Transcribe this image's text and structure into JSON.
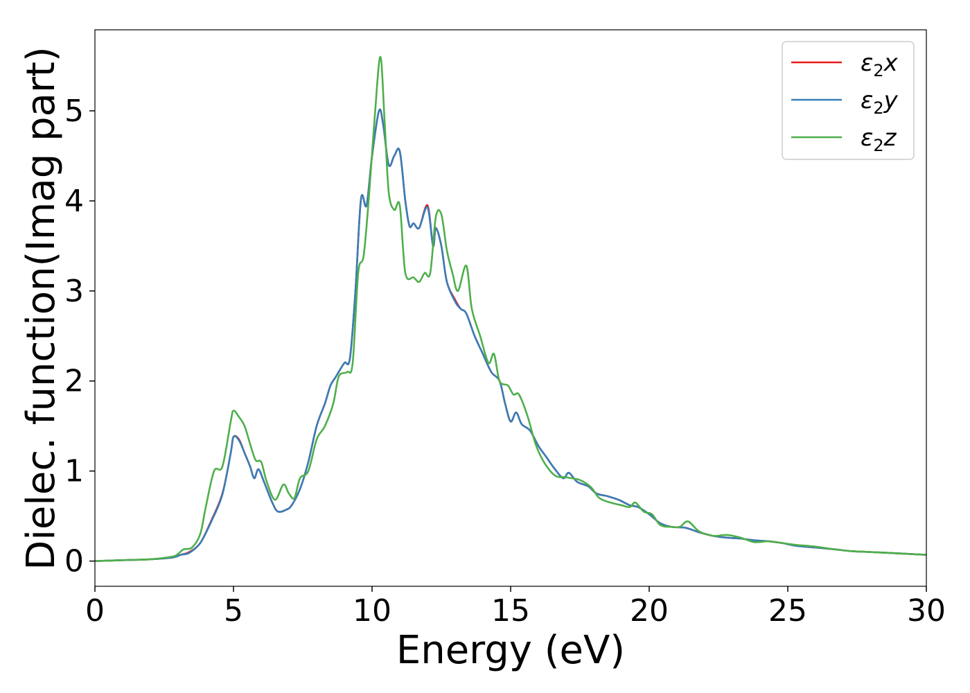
{
  "chart_data": {
    "type": "line",
    "xlabel": "Energy (eV)",
    "ylabel": "Dielec. function(Imag part)",
    "xlim": [
      0,
      30
    ],
    "ylim": [
      -0.28,
      5.9
    ],
    "xticks": [
      0,
      5,
      10,
      15,
      20,
      25,
      30
    ],
    "yticks": [
      0,
      1,
      2,
      3,
      4,
      5
    ],
    "grid": false,
    "legend_position": "top-right",
    "series": [
      {
        "name": "ε2x",
        "color": "#e41a1c",
        "points": [
          [
            0,
            0.0
          ],
          [
            1,
            0.01
          ],
          [
            2,
            0.02
          ],
          [
            2.8,
            0.04
          ],
          [
            3.1,
            0.07
          ],
          [
            3.4,
            0.1
          ],
          [
            3.8,
            0.2
          ],
          [
            4.2,
            0.45
          ],
          [
            4.6,
            0.75
          ],
          [
            4.9,
            1.2
          ],
          [
            5.0,
            1.38
          ],
          [
            5.2,
            1.35
          ],
          [
            5.4,
            1.2
          ],
          [
            5.6,
            1.05
          ],
          [
            5.75,
            0.92
          ],
          [
            5.9,
            1.02
          ],
          [
            6.1,
            0.88
          ],
          [
            6.4,
            0.65
          ],
          [
            6.6,
            0.55
          ],
          [
            6.9,
            0.57
          ],
          [
            7.1,
            0.62
          ],
          [
            7.4,
            0.8
          ],
          [
            7.7,
            1.1
          ],
          [
            8.0,
            1.5
          ],
          [
            8.3,
            1.75
          ],
          [
            8.5,
            1.95
          ],
          [
            8.7,
            2.05
          ],
          [
            9.0,
            2.2
          ],
          [
            9.2,
            2.25
          ],
          [
            9.4,
            3.0
          ],
          [
            9.6,
            4.02
          ],
          [
            9.8,
            3.95
          ],
          [
            10.0,
            4.5
          ],
          [
            10.25,
            5.0
          ],
          [
            10.4,
            4.85
          ],
          [
            10.6,
            4.4
          ],
          [
            10.8,
            4.5
          ],
          [
            11.0,
            4.55
          ],
          [
            11.2,
            4.0
          ],
          [
            11.35,
            3.72
          ],
          [
            11.5,
            3.75
          ],
          [
            11.7,
            3.7
          ],
          [
            12.0,
            3.95
          ],
          [
            12.2,
            3.5
          ],
          [
            12.3,
            3.7
          ],
          [
            12.5,
            3.5
          ],
          [
            12.7,
            3.1
          ],
          [
            13.0,
            2.9
          ],
          [
            13.2,
            2.8
          ],
          [
            13.4,
            2.75
          ],
          [
            13.7,
            2.5
          ],
          [
            14.0,
            2.3
          ],
          [
            14.3,
            2.1
          ],
          [
            14.6,
            2.0
          ],
          [
            14.8,
            1.75
          ],
          [
            15.0,
            1.55
          ],
          [
            15.2,
            1.65
          ],
          [
            15.4,
            1.52
          ],
          [
            15.7,
            1.45
          ],
          [
            16.0,
            1.28
          ],
          [
            16.3,
            1.15
          ],
          [
            16.6,
            1.02
          ],
          [
            16.9,
            0.92
          ],
          [
            17.1,
            0.98
          ],
          [
            17.4,
            0.88
          ],
          [
            17.8,
            0.83
          ],
          [
            18.1,
            0.75
          ],
          [
            18.5,
            0.72
          ],
          [
            18.9,
            0.68
          ],
          [
            19.3,
            0.62
          ],
          [
            19.6,
            0.6
          ],
          [
            20.0,
            0.52
          ],
          [
            20.4,
            0.42
          ],
          [
            20.8,
            0.38
          ],
          [
            21.3,
            0.37
          ],
          [
            21.8,
            0.32
          ],
          [
            22.3,
            0.28
          ],
          [
            22.8,
            0.26
          ],
          [
            23.3,
            0.25
          ],
          [
            23.8,
            0.23
          ],
          [
            24.3,
            0.22
          ],
          [
            24.8,
            0.2
          ],
          [
            25.3,
            0.17
          ],
          [
            26,
            0.15
          ],
          [
            26.7,
            0.13
          ],
          [
            27.3,
            0.11
          ],
          [
            28,
            0.1
          ],
          [
            28.7,
            0.09
          ],
          [
            29.3,
            0.08
          ],
          [
            30,
            0.07
          ]
        ]
      },
      {
        "name": "ε2y",
        "color": "#377eb8",
        "points": [
          [
            0,
            0.0
          ],
          [
            1,
            0.01
          ],
          [
            2,
            0.02
          ],
          [
            2.8,
            0.04
          ],
          [
            3.1,
            0.07
          ],
          [
            3.4,
            0.09
          ],
          [
            3.8,
            0.2
          ],
          [
            4.2,
            0.44
          ],
          [
            4.6,
            0.74
          ],
          [
            4.9,
            1.2
          ],
          [
            5.0,
            1.38
          ],
          [
            5.2,
            1.34
          ],
          [
            5.4,
            1.2
          ],
          [
            5.6,
            1.05
          ],
          [
            5.75,
            0.92
          ],
          [
            5.9,
            1.02
          ],
          [
            6.1,
            0.88
          ],
          [
            6.4,
            0.65
          ],
          [
            6.6,
            0.55
          ],
          [
            6.9,
            0.57
          ],
          [
            7.1,
            0.62
          ],
          [
            7.4,
            0.8
          ],
          [
            7.7,
            1.1
          ],
          [
            8.0,
            1.5
          ],
          [
            8.3,
            1.75
          ],
          [
            8.5,
            1.95
          ],
          [
            8.7,
            2.05
          ],
          [
            9.0,
            2.2
          ],
          [
            9.2,
            2.25
          ],
          [
            9.4,
            3.0
          ],
          [
            9.6,
            4.02
          ],
          [
            9.8,
            3.95
          ],
          [
            10.0,
            4.5
          ],
          [
            10.25,
            5.0
          ],
          [
            10.4,
            4.85
          ],
          [
            10.6,
            4.4
          ],
          [
            10.8,
            4.5
          ],
          [
            11.0,
            4.55
          ],
          [
            11.2,
            4.0
          ],
          [
            11.35,
            3.72
          ],
          [
            11.5,
            3.75
          ],
          [
            11.7,
            3.7
          ],
          [
            12.0,
            3.93
          ],
          [
            12.2,
            3.5
          ],
          [
            12.3,
            3.7
          ],
          [
            12.5,
            3.5
          ],
          [
            12.7,
            3.1
          ],
          [
            13.0,
            2.88
          ],
          [
            13.2,
            2.8
          ],
          [
            13.4,
            2.75
          ],
          [
            13.7,
            2.5
          ],
          [
            14.0,
            2.3
          ],
          [
            14.3,
            2.1
          ],
          [
            14.6,
            2.0
          ],
          [
            14.8,
            1.75
          ],
          [
            15.0,
            1.55
          ],
          [
            15.2,
            1.65
          ],
          [
            15.4,
            1.52
          ],
          [
            15.7,
            1.45
          ],
          [
            16.0,
            1.28
          ],
          [
            16.3,
            1.15
          ],
          [
            16.6,
            1.02
          ],
          [
            16.9,
            0.92
          ],
          [
            17.1,
            0.98
          ],
          [
            17.4,
            0.88
          ],
          [
            17.8,
            0.83
          ],
          [
            18.1,
            0.75
          ],
          [
            18.5,
            0.72
          ],
          [
            18.9,
            0.68
          ],
          [
            19.3,
            0.62
          ],
          [
            19.6,
            0.6
          ],
          [
            20.0,
            0.52
          ],
          [
            20.4,
            0.42
          ],
          [
            20.8,
            0.38
          ],
          [
            21.3,
            0.37
          ],
          [
            21.8,
            0.32
          ],
          [
            22.3,
            0.28
          ],
          [
            22.8,
            0.26
          ],
          [
            23.3,
            0.25
          ],
          [
            23.8,
            0.23
          ],
          [
            24.3,
            0.22
          ],
          [
            24.8,
            0.2
          ],
          [
            25.3,
            0.17
          ],
          [
            26,
            0.15
          ],
          [
            26.7,
            0.13
          ],
          [
            27.3,
            0.11
          ],
          [
            28,
            0.1
          ],
          [
            28.7,
            0.09
          ],
          [
            29.3,
            0.08
          ],
          [
            30,
            0.07
          ]
        ]
      },
      {
        "name": "ε2z",
        "color": "#4daf4a",
        "points": [
          [
            0,
            0.0
          ],
          [
            1,
            0.01
          ],
          [
            2,
            0.02
          ],
          [
            2.8,
            0.05
          ],
          [
            3.0,
            0.08
          ],
          [
            3.2,
            0.13
          ],
          [
            3.5,
            0.15
          ],
          [
            3.8,
            0.3
          ],
          [
            4.0,
            0.6
          ],
          [
            4.3,
            1.0
          ],
          [
            4.6,
            1.05
          ],
          [
            4.9,
            1.55
          ],
          [
            5.0,
            1.67
          ],
          [
            5.2,
            1.6
          ],
          [
            5.4,
            1.5
          ],
          [
            5.6,
            1.3
          ],
          [
            5.8,
            1.12
          ],
          [
            6.0,
            1.1
          ],
          [
            6.2,
            0.88
          ],
          [
            6.5,
            0.68
          ],
          [
            6.8,
            0.85
          ],
          [
            7.0,
            0.75
          ],
          [
            7.2,
            0.7
          ],
          [
            7.4,
            0.92
          ],
          [
            7.7,
            1.0
          ],
          [
            8.0,
            1.35
          ],
          [
            8.3,
            1.5
          ],
          [
            8.6,
            1.75
          ],
          [
            8.8,
            2.05
          ],
          [
            9.1,
            2.1
          ],
          [
            9.3,
            2.2
          ],
          [
            9.5,
            3.2
          ],
          [
            9.7,
            3.4
          ],
          [
            9.9,
            4.1
          ],
          [
            10.1,
            4.95
          ],
          [
            10.3,
            5.6
          ],
          [
            10.45,
            4.9
          ],
          [
            10.6,
            4.1
          ],
          [
            10.8,
            3.9
          ],
          [
            11.0,
            3.95
          ],
          [
            11.2,
            3.2
          ],
          [
            11.5,
            3.15
          ],
          [
            11.7,
            3.1
          ],
          [
            11.9,
            3.2
          ],
          [
            12.1,
            3.2
          ],
          [
            12.3,
            3.82
          ],
          [
            12.5,
            3.85
          ],
          [
            12.7,
            3.45
          ],
          [
            12.9,
            3.2
          ],
          [
            13.1,
            3.0
          ],
          [
            13.4,
            3.28
          ],
          [
            13.6,
            2.8
          ],
          [
            13.9,
            2.5
          ],
          [
            14.2,
            2.2
          ],
          [
            14.4,
            2.3
          ],
          [
            14.6,
            2.0
          ],
          [
            14.9,
            1.95
          ],
          [
            15.1,
            1.85
          ],
          [
            15.3,
            1.85
          ],
          [
            15.6,
            1.62
          ],
          [
            15.9,
            1.3
          ],
          [
            16.2,
            1.1
          ],
          [
            16.6,
            0.95
          ],
          [
            17.0,
            0.93
          ],
          [
            17.5,
            0.9
          ],
          [
            17.9,
            0.82
          ],
          [
            18.2,
            0.7
          ],
          [
            18.6,
            0.65
          ],
          [
            19.0,
            0.62
          ],
          [
            19.3,
            0.6
          ],
          [
            19.5,
            0.65
          ],
          [
            19.8,
            0.55
          ],
          [
            20.1,
            0.52
          ],
          [
            20.4,
            0.4
          ],
          [
            20.8,
            0.38
          ],
          [
            21.1,
            0.38
          ],
          [
            21.4,
            0.44
          ],
          [
            21.8,
            0.33
          ],
          [
            22.3,
            0.28
          ],
          [
            22.8,
            0.29
          ],
          [
            23.3,
            0.26
          ],
          [
            23.8,
            0.21
          ],
          [
            24.3,
            0.22
          ],
          [
            24.8,
            0.2
          ],
          [
            25.3,
            0.18
          ],
          [
            26,
            0.16
          ],
          [
            26.7,
            0.13
          ],
          [
            27.3,
            0.11
          ],
          [
            28,
            0.1
          ],
          [
            28.7,
            0.09
          ],
          [
            29.3,
            0.08
          ],
          [
            30,
            0.07
          ]
        ]
      }
    ]
  }
}
